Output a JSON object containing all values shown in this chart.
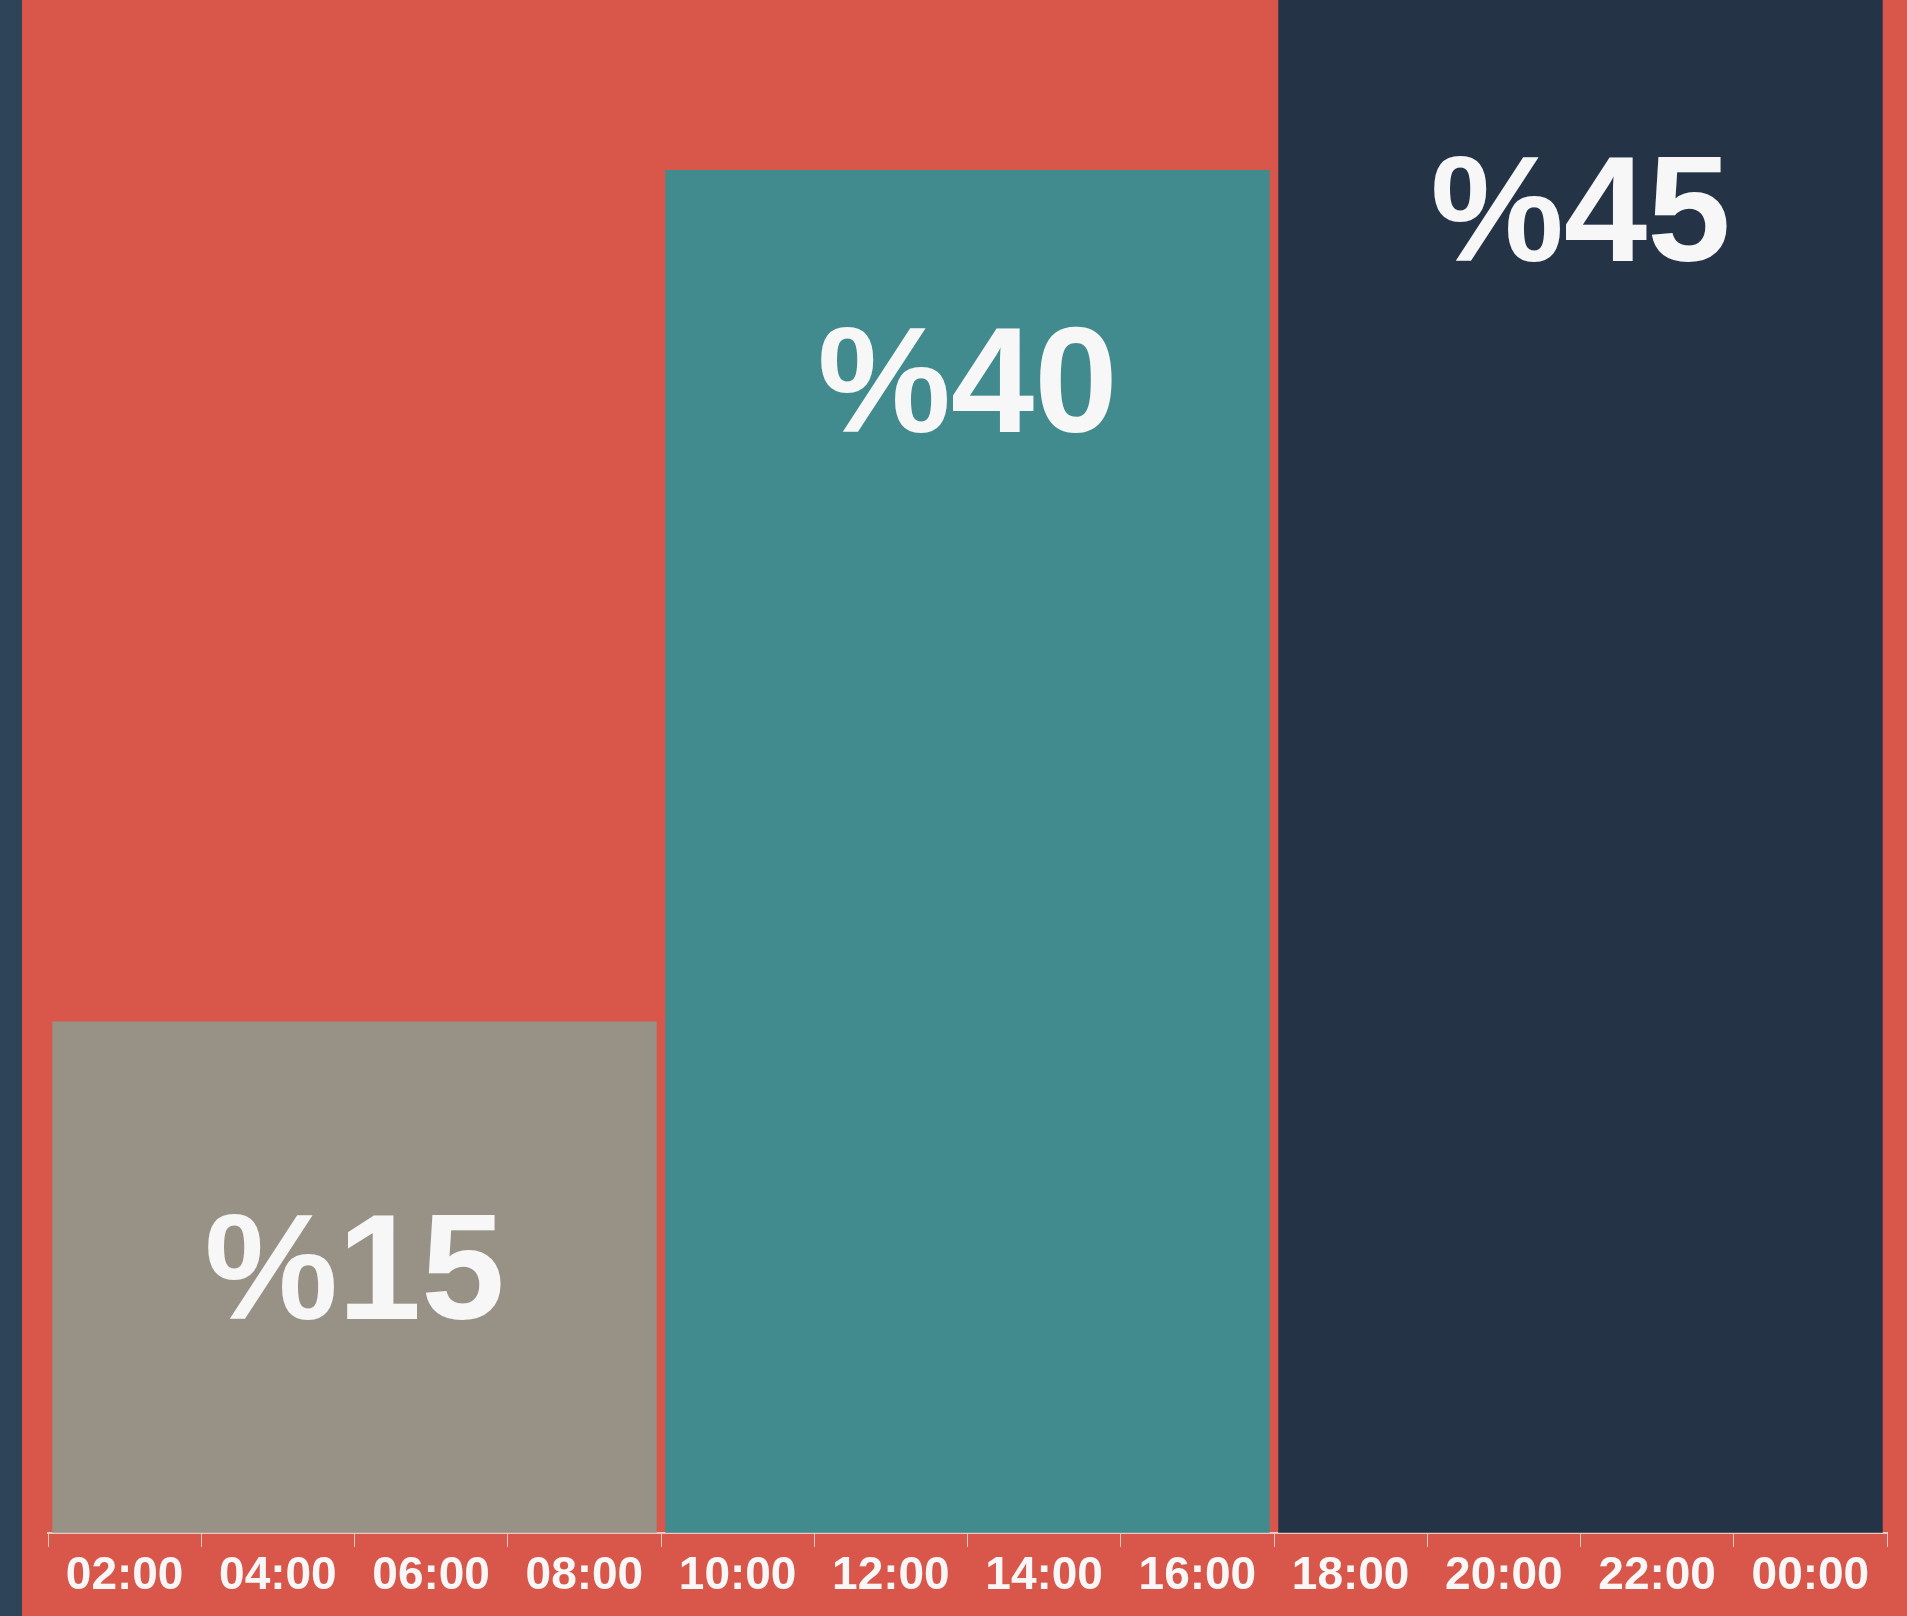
{
  "chart_data": {
    "type": "bar",
    "x": [
      5,
      13,
      21
    ],
    "values": [
      15,
      40,
      45
    ],
    "colors": [
      "#989185",
      "#418a8e",
      "#243446"
    ],
    "value_labels": [
      "%15",
      "%40",
      "%45"
    ],
    "xlim": [
      1,
      25
    ],
    "xticks": [
      {
        "value": 2,
        "label": "02:00"
      },
      {
        "value": 4,
        "label": "04:00"
      },
      {
        "value": 6,
        "label": "06:00"
      },
      {
        "value": 8,
        "label": "08:00"
      },
      {
        "value": 10,
        "label": "10:00"
      },
      {
        "value": 12,
        "label": "12:00"
      },
      {
        "value": 14,
        "label": "14:00"
      },
      {
        "value": 16,
        "label": "16:00"
      },
      {
        "value": 18,
        "label": "18:00"
      },
      {
        "value": 20,
        "label": "20:00"
      },
      {
        "value": 22,
        "label": "22:00"
      },
      {
        "value": 24,
        "label": "00:00"
      }
    ],
    "tick_labels": "x",
    "grid": false,
    "legend": false
  }
}
